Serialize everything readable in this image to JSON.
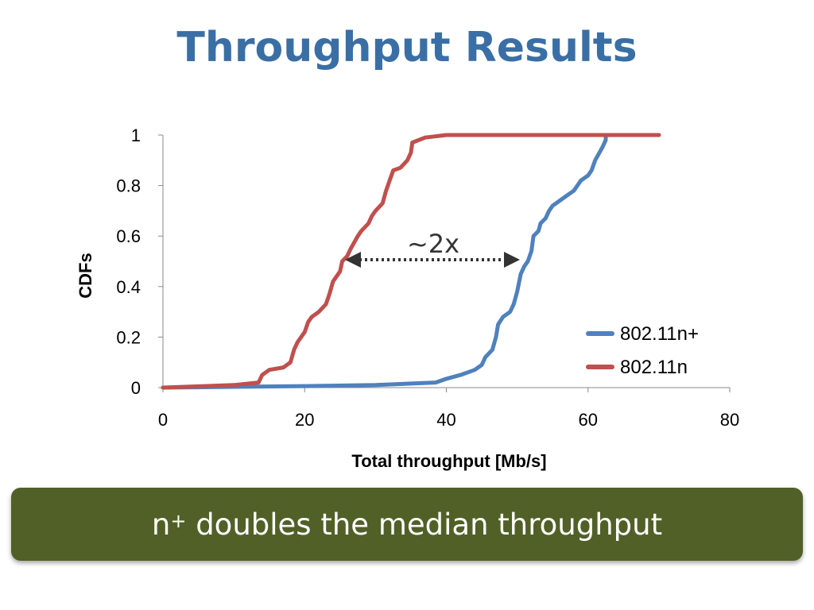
{
  "slide": {
    "title": "Throughput Results"
  },
  "callout": {
    "prefix": "n",
    "superscript": "+",
    "text": " doubles the median throughput"
  },
  "annotation": {
    "text": "~2x"
  },
  "colors": {
    "title": "#3a6fa5",
    "series_plus": "#4f81bd",
    "series_n": "#c0504d",
    "callout_bg": "#506027"
  },
  "chart_data": {
    "type": "line",
    "xlabel": "Total throughput [Mb/s]",
    "ylabel": "CDFs",
    "xlim": [
      0,
      80
    ],
    "ylim": [
      0,
      1
    ],
    "xticks": [
      "0",
      "20",
      "40",
      "60",
      "80"
    ],
    "yticks": [
      "0",
      "0.2",
      "0.4",
      "0.6",
      "0.8",
      "1"
    ],
    "grid": false,
    "legend_position": "bottom-right",
    "series": [
      {
        "name": "802.11n+",
        "color": "#4f81bd",
        "points": [
          [
            0,
            0
          ],
          [
            10,
            0.003
          ],
          [
            20,
            0.006
          ],
          [
            30,
            0.01
          ],
          [
            38.5,
            0.02
          ],
          [
            40,
            0.035
          ],
          [
            42,
            0.05
          ],
          [
            44,
            0.07
          ],
          [
            45,
            0.09
          ],
          [
            45.5,
            0.12
          ],
          [
            46.5,
            0.15
          ],
          [
            47,
            0.2
          ],
          [
            47.3,
            0.25
          ],
          [
            48,
            0.28
          ],
          [
            49,
            0.3
          ],
          [
            49.5,
            0.33
          ],
          [
            50,
            0.38
          ],
          [
            50.5,
            0.45
          ],
          [
            51,
            0.48
          ],
          [
            51.5,
            0.5
          ],
          [
            52,
            0.54
          ],
          [
            52.3,
            0.6
          ],
          [
            53,
            0.62
          ],
          [
            53.3,
            0.65
          ],
          [
            54,
            0.67
          ],
          [
            54.5,
            0.7
          ],
          [
            55,
            0.72
          ],
          [
            56,
            0.74
          ],
          [
            57,
            0.76
          ],
          [
            58,
            0.78
          ],
          [
            58.5,
            0.8
          ],
          [
            59,
            0.82
          ],
          [
            60,
            0.84
          ],
          [
            60.5,
            0.86
          ],
          [
            61,
            0.9
          ],
          [
            62,
            0.95
          ],
          [
            62.5,
            0.98
          ],
          [
            62.5,
            1.0
          ],
          [
            70,
            1.0
          ]
        ]
      },
      {
        "name": "802.11n",
        "color": "#c0504d",
        "points": [
          [
            0,
            0
          ],
          [
            5,
            0.005
          ],
          [
            10,
            0.01
          ],
          [
            13.5,
            0.02
          ],
          [
            14,
            0.05
          ],
          [
            15,
            0.07
          ],
          [
            17,
            0.08
          ],
          [
            18,
            0.1
          ],
          [
            18.5,
            0.15
          ],
          [
            19,
            0.18
          ],
          [
            20,
            0.22
          ],
          [
            20.5,
            0.26
          ],
          [
            21,
            0.28
          ],
          [
            22,
            0.3
          ],
          [
            23,
            0.33
          ],
          [
            23.5,
            0.37
          ],
          [
            24,
            0.42
          ],
          [
            25,
            0.46
          ],
          [
            25.3,
            0.5
          ],
          [
            26,
            0.52
          ],
          [
            26.5,
            0.55
          ],
          [
            27.5,
            0.6
          ],
          [
            28,
            0.62
          ],
          [
            29,
            0.65
          ],
          [
            29.5,
            0.68
          ],
          [
            30,
            0.7
          ],
          [
            31,
            0.73
          ],
          [
            31.5,
            0.78
          ],
          [
            32,
            0.82
          ],
          [
            32.5,
            0.86
          ],
          [
            33.5,
            0.87
          ],
          [
            34.5,
            0.9
          ],
          [
            35,
            0.93
          ],
          [
            35.2,
            0.97
          ],
          [
            37,
            0.99
          ],
          [
            40,
            1.0
          ],
          [
            50,
            1.0
          ],
          [
            70,
            1.0
          ]
        ]
      }
    ]
  }
}
